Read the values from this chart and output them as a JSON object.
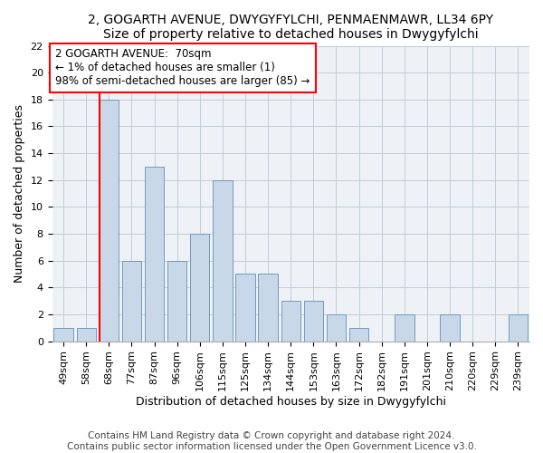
{
  "title_line1": "2, GOGARTH AVENUE, DWYGYFYLCHI, PENMAENMAWR, LL34 6PY",
  "title_line2": "Size of property relative to detached houses in Dwygyfylchi",
  "xlabel": "Distribution of detached houses by size in Dwygyfylchi",
  "ylabel": "Number of detached properties",
  "categories": [
    "49sqm",
    "58sqm",
    "68sqm",
    "77sqm",
    "87sqm",
    "96sqm",
    "106sqm",
    "115sqm",
    "125sqm",
    "134sqm",
    "144sqm",
    "153sqm",
    "163sqm",
    "172sqm",
    "182sqm",
    "191sqm",
    "201sqm",
    "210sqm",
    "220sqm",
    "229sqm",
    "239sqm"
  ],
  "values": [
    1,
    1,
    18,
    6,
    13,
    6,
    8,
    12,
    5,
    5,
    3,
    3,
    2,
    1,
    0,
    2,
    0,
    2,
    0,
    0,
    2
  ],
  "bar_color": "#c8d8e8",
  "bar_edge_color": "#6090b8",
  "annotation_text": "2 GOGARTH AVENUE:  70sqm\n← 1% of detached houses are smaller (1)\n98% of semi-detached houses are larger (85) →",
  "annotation_box_color": "white",
  "annotation_box_edgecolor": "red",
  "vline_color": "red",
  "vline_index": 2,
  "ylim": [
    0,
    22
  ],
  "yticks": [
    0,
    2,
    4,
    6,
    8,
    10,
    12,
    14,
    16,
    18,
    20,
    22
  ],
  "footer_line1": "Contains HM Land Registry data © Crown copyright and database right 2024.",
  "footer_line2": "Contains public sector information licensed under the Open Government Licence v3.0.",
  "background_color": "#eef2f7",
  "grid_color": "#c0ccd8",
  "title_fontsize": 10,
  "axis_label_fontsize": 9,
  "tick_fontsize": 8,
  "footer_fontsize": 7.5,
  "annotation_fontsize": 8.5
}
